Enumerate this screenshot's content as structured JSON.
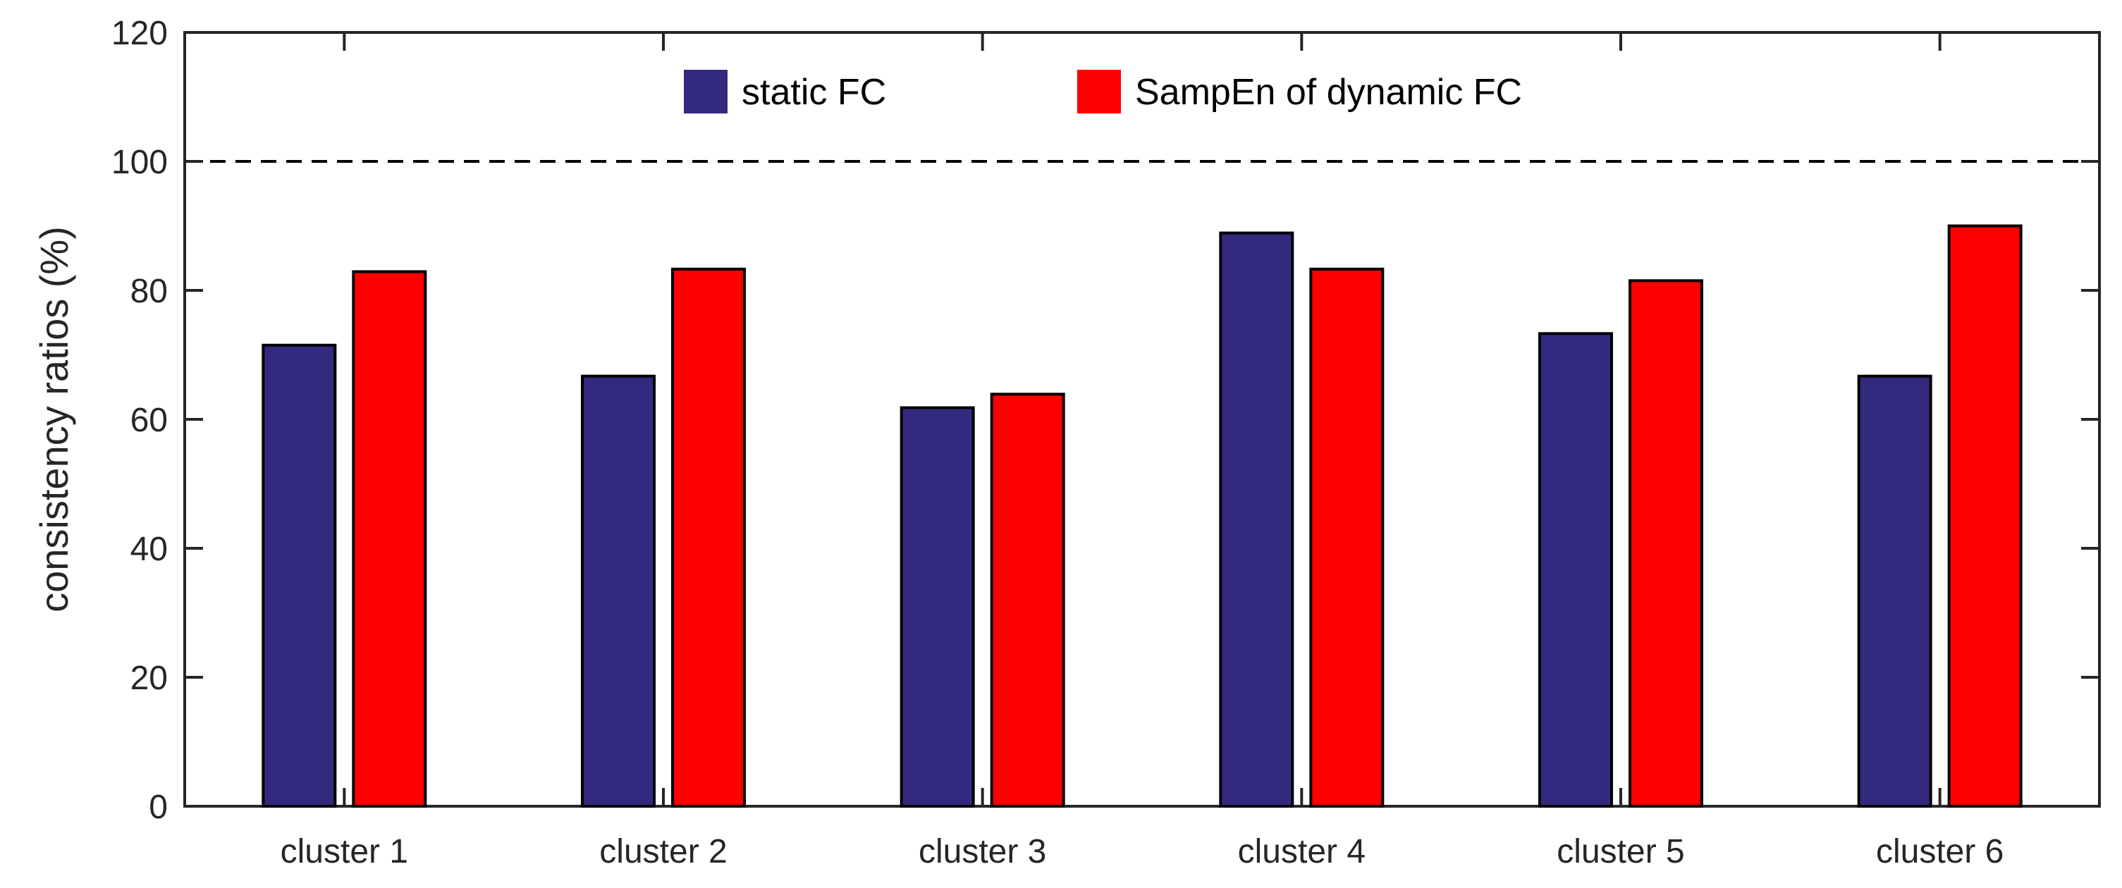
{
  "chart_data": {
    "type": "bar",
    "title": "",
    "xlabel": "",
    "ylabel": "consistency ratios (%)",
    "ylim": [
      0,
      120
    ],
    "yticks": [
      0,
      20,
      40,
      60,
      80,
      100,
      120
    ],
    "categories": [
      "cluster 1",
      "cluster 2",
      "cluster 3",
      "cluster 4",
      "cluster 5",
      "cluster 6"
    ],
    "series": [
      {
        "name": "static FC",
        "color": "#332a7f",
        "values": [
          71.5,
          66.7,
          61.8,
          88.9,
          73.3,
          66.7
        ]
      },
      {
        "name": "SampEn of dynamic FC",
        "color": "#ff0000",
        "values": [
          82.9,
          83.3,
          63.9,
          83.3,
          81.5,
          90.0
        ]
      }
    ],
    "reference_line": {
      "value": 100,
      "style": "dashed",
      "color": "#000000"
    },
    "legend": {
      "placement": "top-center",
      "orientation": "horizontal"
    },
    "grid": false
  }
}
